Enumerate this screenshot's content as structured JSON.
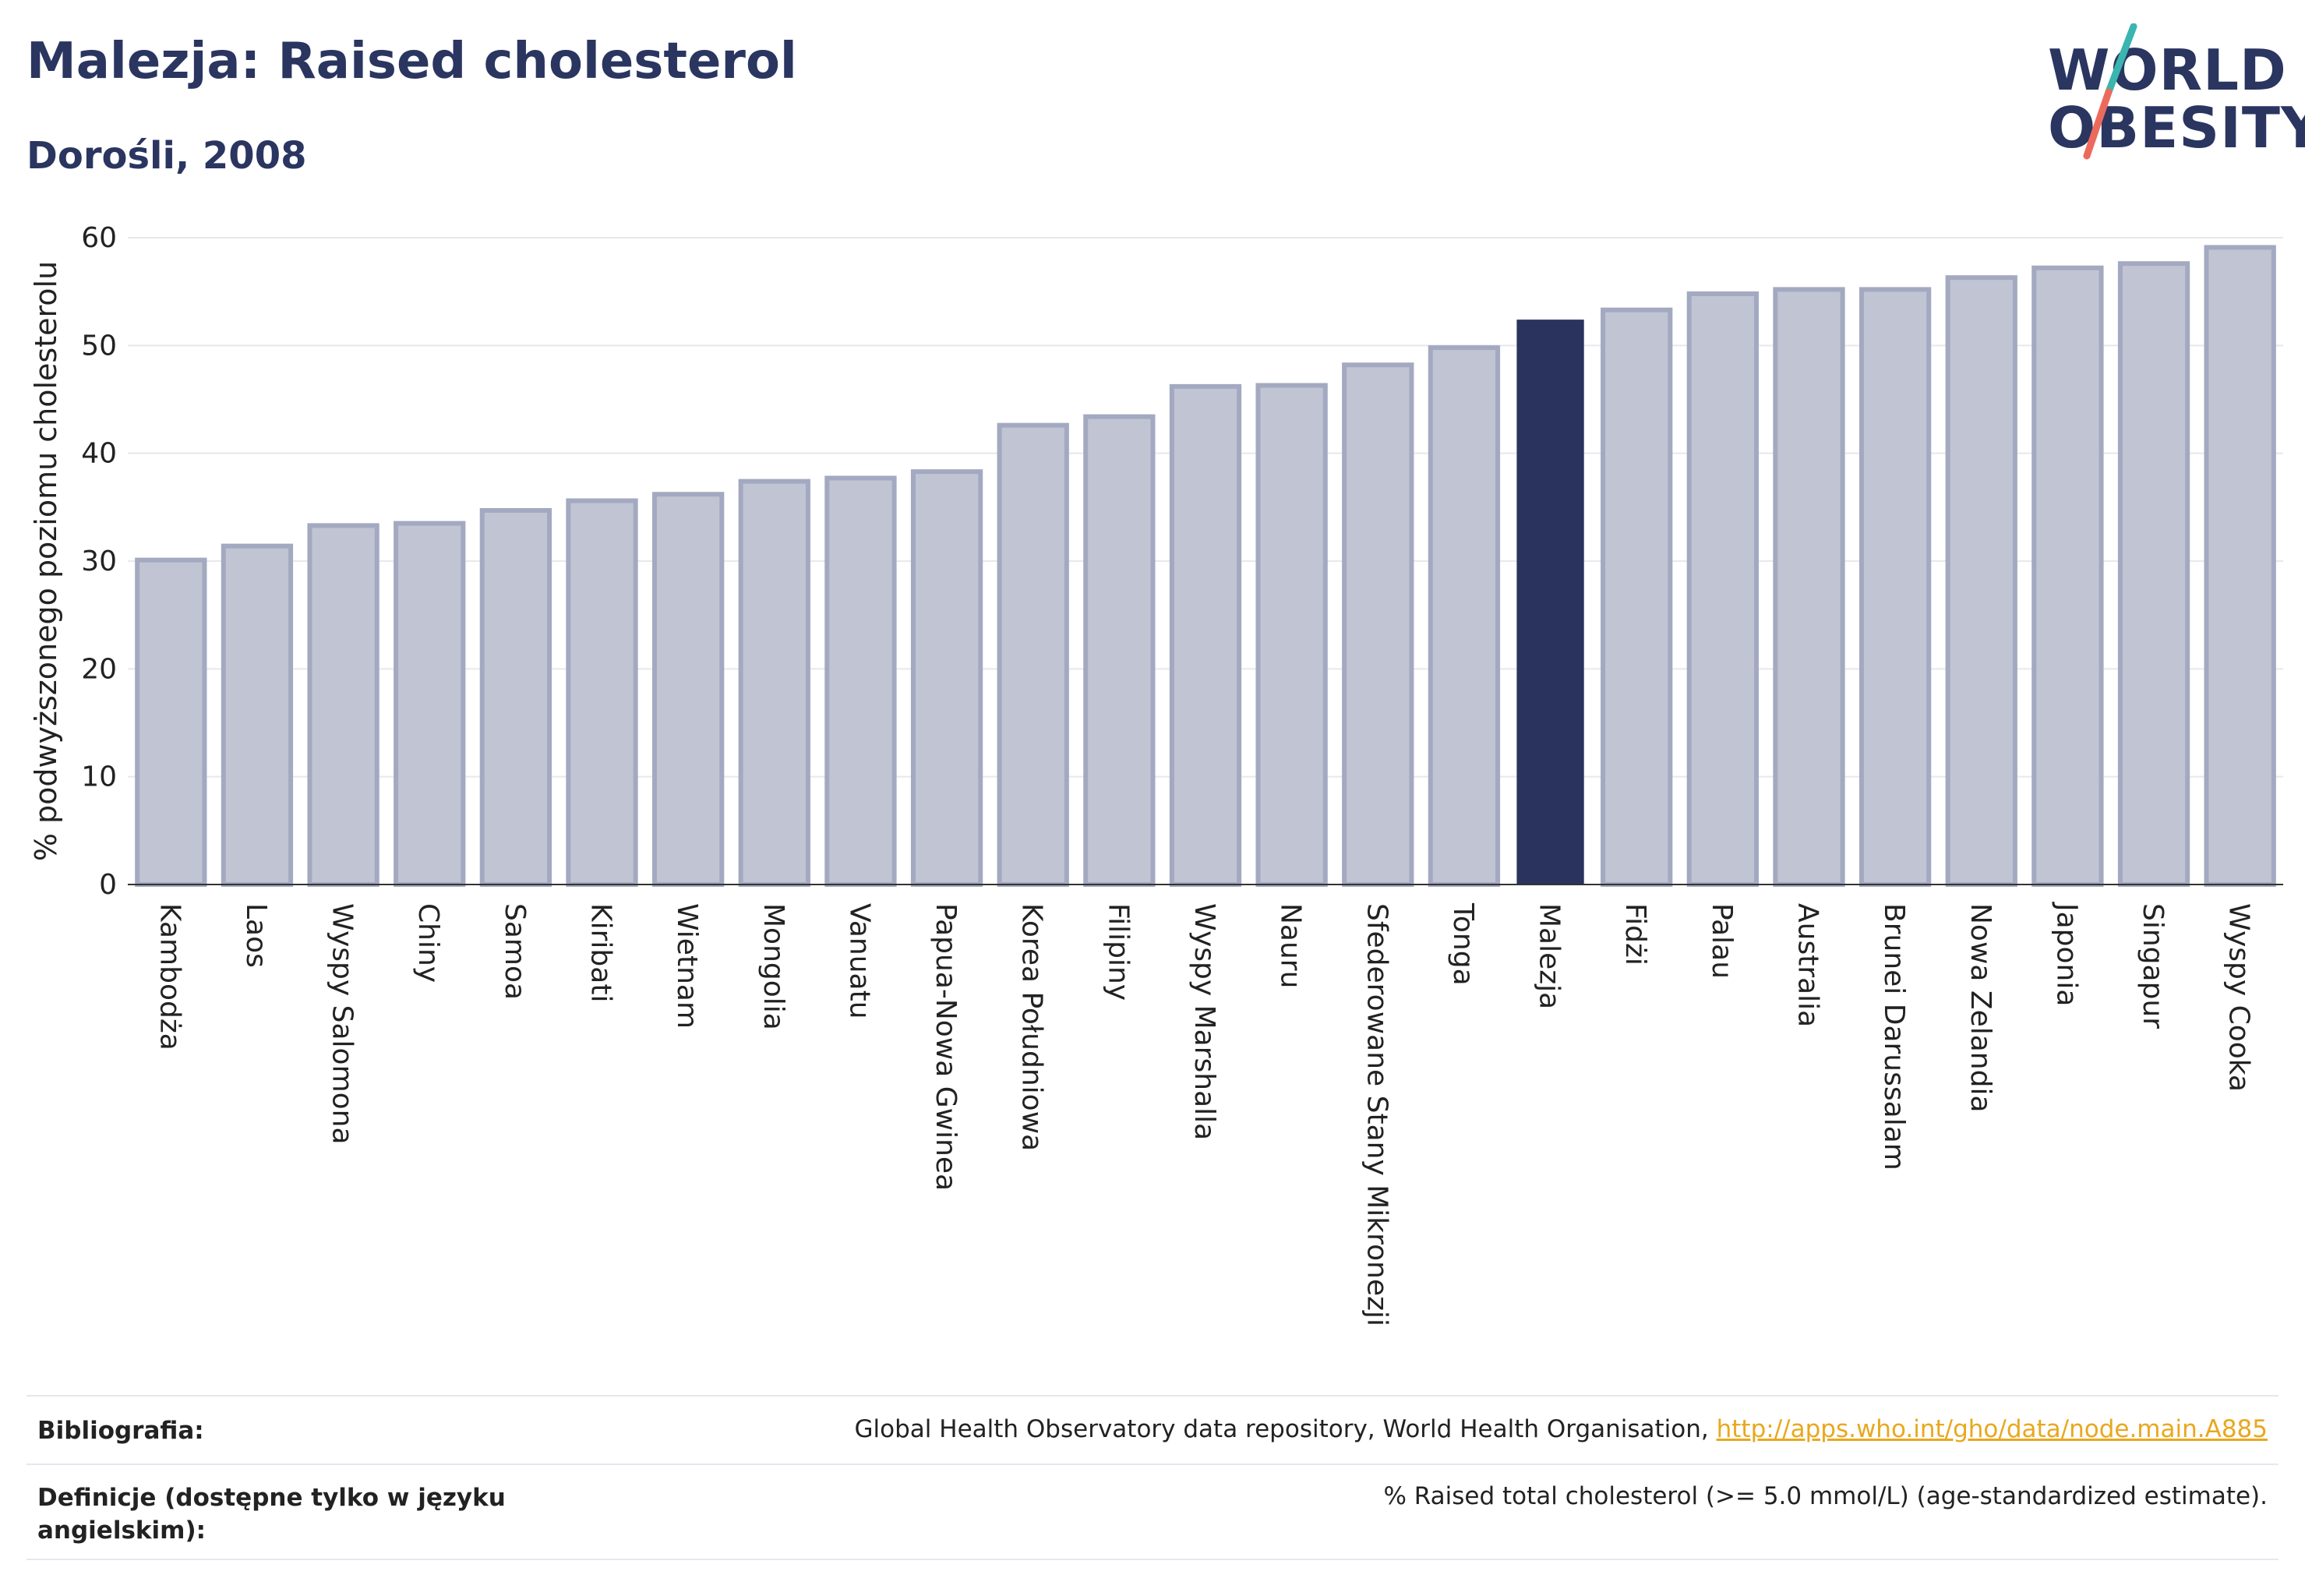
{
  "header": {
    "title": "Malezja: Raised cholesterol",
    "subtitle": "Dorośli, 2008"
  },
  "logo": {
    "line1": "WORLD",
    "line2": "OBESITY",
    "slash_color_top": "#3ab5b0",
    "slash_color_bottom": "#ec6a5c"
  },
  "colors": {
    "bar_fill": "#c1c4d3",
    "bar_stroke": "#a3a9c0",
    "highlight": "#29335e",
    "grid": "#e8e8ee",
    "text_dark": "#2a3560",
    "link": "#e8a81e"
  },
  "chart_data": {
    "type": "bar",
    "title": "",
    "xlabel": "",
    "ylabel": "% podwyższonego poziomu cholesterolu",
    "ylim": [
      0,
      60
    ],
    "yticks": [
      0,
      10,
      20,
      30,
      40,
      50,
      60
    ],
    "grid": true,
    "highlight_category": "Malezja",
    "categories": [
      "Kambodża",
      "Laos",
      "Wyspy Salomona",
      "Chiny",
      "Samoa",
      "Kiribati",
      "Wietnam",
      "Mongolia",
      "Vanuatu",
      "Papua-Nowa Gwinea",
      "Korea Południowa",
      "Filipiny",
      "Wyspy Marshalla",
      "Nauru",
      "Sfederowane Stany Mikronezji",
      "Tonga",
      "Malezja",
      "Fidżi",
      "Palau",
      "Australia",
      "Brunei Darussalam",
      "Nowa Zelandia",
      "Japonia",
      "Singapur",
      "Wyspy Cooka"
    ],
    "values": [
      30.1,
      31.4,
      33.3,
      33.5,
      34.7,
      35.6,
      36.2,
      37.4,
      37.7,
      38.3,
      42.6,
      43.4,
      46.2,
      46.3,
      48.2,
      49.8,
      52.4,
      53.3,
      54.8,
      55.2,
      55.2,
      56.3,
      57.2,
      57.6,
      59.1
    ]
  },
  "footer": {
    "bibliography_label": "Bibliografia:",
    "bibliography_text": "Global Health Observatory data repository, World Health Organisation, ",
    "bibliography_link": "http://apps.who.int/gho/data/node.main.A885",
    "definition_label": "Definicje (dostępne tylko w języku angielskim):",
    "definition_text": "% Raised total cholesterol (>= 5.0 mmol/L) (age-standardized estimate)."
  }
}
